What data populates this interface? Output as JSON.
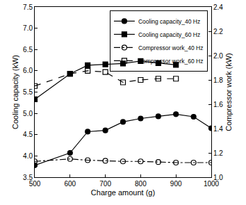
{
  "chart_data": {
    "type": "line",
    "x_label": "Charge amount (g)",
    "y_label": "Cooling capacity (kW)",
    "y2_label": "Compressor work (kW)",
    "xlim": [
      500,
      1000
    ],
    "xticks": [
      500,
      600,
      700,
      800,
      900,
      1000
    ],
    "ylim": [
      3.5,
      7.5
    ],
    "yticks": [
      {
        "value": 3.5,
        "label": "3.5"
      },
      {
        "value": 4,
        "label": "4.0"
      },
      {
        "value": 4.5,
        "label": "4.5"
      },
      {
        "value": 5,
        "label": "5.0"
      },
      {
        "value": 5.5,
        "label": "5.5"
      },
      {
        "value": 6,
        "label": "6.0"
      },
      {
        "value": 6.5,
        "label": "6.5"
      },
      {
        "value": 7,
        "label": "7.0"
      },
      {
        "value": 7.5,
        "label": "7.5"
      }
    ],
    "y2lim": [
      1.0,
      2.4
    ],
    "y2ticks": [
      {
        "value": 1,
        "label": "1.0"
      },
      {
        "value": 1.2,
        "label": "1.2"
      },
      {
        "value": 1.4,
        "label": "1.4"
      },
      {
        "value": 1.6,
        "label": "1.6"
      },
      {
        "value": 1.8,
        "label": "1.8"
      },
      {
        "value": 2,
        "label": "2.0"
      },
      {
        "value": 2.2,
        "label": "2.2"
      },
      {
        "value": 2.4,
        "label": "2.4"
      }
    ],
    "grid": false,
    "legend": "upper right",
    "series": [
      {
        "name": "Cooling capacity_40 Hz",
        "color": "#000000",
        "marker": "circle",
        "line_style": "solid",
        "x": [
          500,
          600,
          650,
          700,
          750,
          800,
          850,
          900,
          950,
          1000
        ],
        "values": [
          3.78,
          4.07,
          4.57,
          4.6,
          4.8,
          4.88,
          4.93,
          4.98,
          4.92,
          4.65
        ]
      },
      {
        "name": "Cooling capacity_60 Hz",
        "color": "#000000",
        "marker": "square",
        "line_style": "solid",
        "x": [
          500,
          600,
          650,
          700,
          750,
          800,
          850,
          900
        ],
        "values": [
          5.33,
          5.93,
          6.13,
          6.15,
          6.17,
          6.23,
          6.18,
          6.14
        ]
      },
      {
        "name": "Compressor work_40 Hz",
        "color": "#000000",
        "marker": "circle-open",
        "line_style": "dashdot",
        "axis": "y2",
        "x": [
          500,
          600,
          650,
          700,
          750,
          800,
          850,
          900,
          950,
          1000
        ],
        "values": [
          1.13,
          1.15,
          1.14,
          1.135,
          1.13,
          1.13,
          1.125,
          1.12,
          1.12,
          1.12
        ]
      },
      {
        "name": "Compressor work_60 Hz",
        "color": "#000000",
        "marker": "square-open",
        "line_style": "dash",
        "axis": "y2",
        "x": [
          500,
          600,
          650,
          700,
          750,
          800,
          850,
          900
        ],
        "values": [
          1.75,
          1.85,
          1.875,
          1.865,
          1.78,
          1.8,
          1.81,
          1.81
        ]
      }
    ]
  }
}
